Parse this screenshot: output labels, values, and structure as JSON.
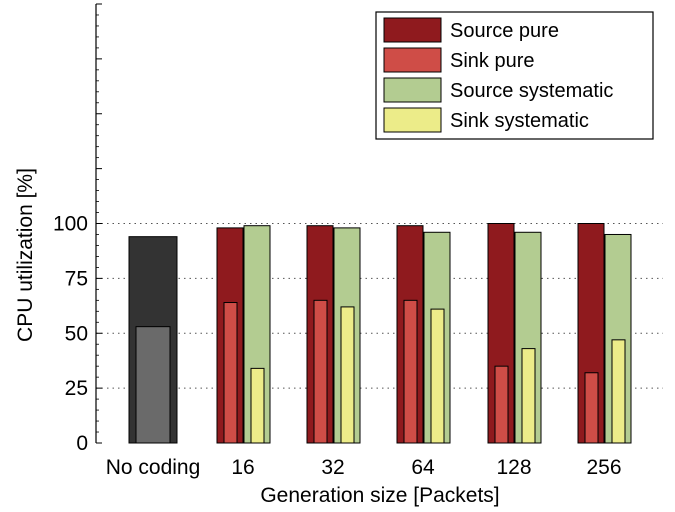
{
  "chart_data": {
    "type": "bar",
    "title": "",
    "xlabel": "Generation size [Packets]",
    "ylabel": "CPU utilization [%]",
    "ylim": [
      0,
      200
    ],
    "yticks": [
      "0",
      "25",
      "50",
      "75",
      "100"
    ],
    "grid": "horizontal dotted at y ticks",
    "legend_position": "top-right",
    "baseline": {
      "category": "No coding",
      "outer_value": 94,
      "inner_value": 53,
      "outer_color": "#333333",
      "inner_color": "#6a6a6a"
    },
    "categories": [
      "16",
      "32",
      "64",
      "128",
      "256"
    ],
    "series": [
      {
        "name": "Source pure",
        "color": "#8f1a1e",
        "values": [
          98,
          99,
          99,
          100,
          100
        ]
      },
      {
        "name": "Sink pure",
        "color": "#cf4d47",
        "values": [
          64,
          65,
          65,
          35,
          32
        ]
      },
      {
        "name": "Source systematic",
        "color": "#b3cc91",
        "values": [
          99,
          98,
          96,
          96,
          95
        ]
      },
      {
        "name": "Sink systematic",
        "color": "#ecec89",
        "values": [
          34,
          62,
          61,
          43,
          47
        ]
      }
    ],
    "x_tick_labels": [
      "No coding",
      "16",
      "32",
      "64",
      "128",
      "256"
    ]
  }
}
